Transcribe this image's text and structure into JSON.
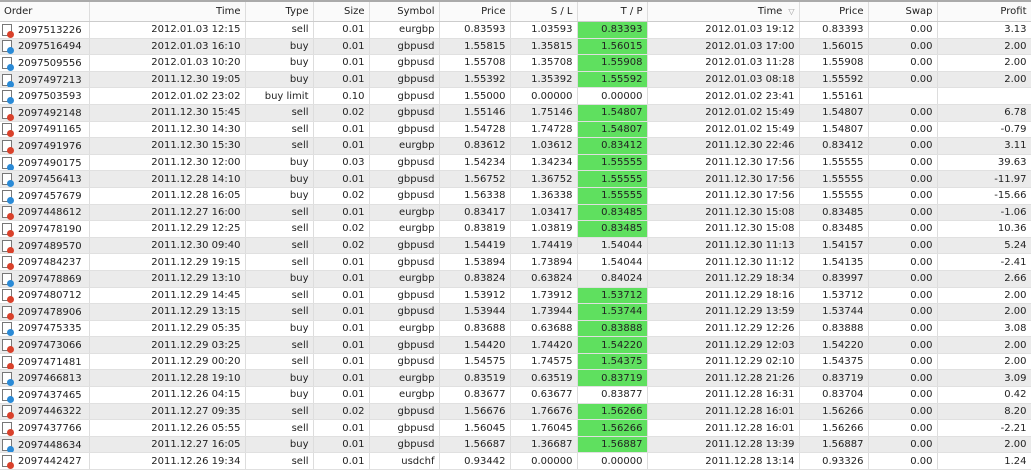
{
  "colors": {
    "tp_hit": "#5fe05f",
    "sell": "#d9412b",
    "buy": "#2a8ad6",
    "row_alt": "#ebebeb"
  },
  "columns": [
    "Order",
    "Time",
    "Type",
    "Size",
    "Symbol",
    "Price",
    "S / L",
    "T / P",
    "Time",
    "Price",
    "Swap",
    "Profit"
  ],
  "sort_icon": "sort-descending-icon",
  "rows": [
    [
      "2097513226",
      "2012.01.03 12:15",
      "sell",
      "0.01",
      "eurgbp",
      "0.83593",
      "1.03593",
      "0.83393",
      "2012.01.03 19:12",
      "0.83393",
      "0.00",
      "3.13",
      true
    ],
    [
      "2097516494",
      "2012.01.03 16:10",
      "buy",
      "0.01",
      "gbpusd",
      "1.55815",
      "1.35815",
      "1.56015",
      "2012.01.03 17:00",
      "1.56015",
      "0.00",
      "2.00",
      true
    ],
    [
      "2097509556",
      "2012.01.03 10:20",
      "buy",
      "0.01",
      "gbpusd",
      "1.55708",
      "1.35708",
      "1.55908",
      "2012.01.03 11:28",
      "1.55908",
      "0.00",
      "2.00",
      true
    ],
    [
      "2097497213",
      "2011.12.30 19:05",
      "buy",
      "0.01",
      "gbpusd",
      "1.55392",
      "1.35392",
      "1.55592",
      "2012.01.03 08:18",
      "1.55592",
      "0.00",
      "2.00",
      true
    ],
    [
      "2097503593",
      "2012.01.02 23:02",
      "buy limit",
      "0.10",
      "gbpusd",
      "1.55000",
      "0.00000",
      "0.00000",
      "2012.01.02 23:41",
      "1.55161",
      "",
      "",
      false
    ],
    [
      "2097492148",
      "2011.12.30 15:45",
      "sell",
      "0.02",
      "gbpusd",
      "1.55146",
      "1.75146",
      "1.54807",
      "2012.01.02 15:49",
      "1.54807",
      "0.00",
      "6.78",
      true
    ],
    [
      "2097491165",
      "2011.12.30 14:30",
      "sell",
      "0.01",
      "gbpusd",
      "1.54728",
      "1.74728",
      "1.54807",
      "2012.01.02 15:49",
      "1.54807",
      "0.00",
      "-0.79",
      true
    ],
    [
      "2097491976",
      "2011.12.30 15:30",
      "sell",
      "0.01",
      "eurgbp",
      "0.83612",
      "1.03612",
      "0.83412",
      "2011.12.30 22:46",
      "0.83412",
      "0.00",
      "3.11",
      true
    ],
    [
      "2097490175",
      "2011.12.30 12:00",
      "buy",
      "0.03",
      "gbpusd",
      "1.54234",
      "1.34234",
      "1.55555",
      "2011.12.30 17:56",
      "1.55555",
      "0.00",
      "39.63",
      true
    ],
    [
      "2097456413",
      "2011.12.28 14:10",
      "buy",
      "0.01",
      "gbpusd",
      "1.56752",
      "1.36752",
      "1.55555",
      "2011.12.30 17:56",
      "1.55555",
      "0.00",
      "-11.97",
      true
    ],
    [
      "2097457679",
      "2011.12.28 16:05",
      "buy",
      "0.02",
      "gbpusd",
      "1.56338",
      "1.36338",
      "1.55555",
      "2011.12.30 17:56",
      "1.55555",
      "0.00",
      "-15.66",
      true
    ],
    [
      "2097448612",
      "2011.12.27 16:00",
      "sell",
      "0.01",
      "eurgbp",
      "0.83417",
      "1.03417",
      "0.83485",
      "2011.12.30 15:08",
      "0.83485",
      "0.00",
      "-1.06",
      true
    ],
    [
      "2097478190",
      "2011.12.29 12:25",
      "sell",
      "0.02",
      "eurgbp",
      "0.83819",
      "1.03819",
      "0.83485",
      "2011.12.30 15:08",
      "0.83485",
      "0.00",
      "10.36",
      true
    ],
    [
      "2097489570",
      "2011.12.30 09:40",
      "sell",
      "0.02",
      "gbpusd",
      "1.54419",
      "1.74419",
      "1.54044",
      "2011.12.30 11:13",
      "1.54157",
      "0.00",
      "5.24",
      false
    ],
    [
      "2097484237",
      "2011.12.29 19:15",
      "sell",
      "0.01",
      "gbpusd",
      "1.53894",
      "1.73894",
      "1.54044",
      "2011.12.30 11:12",
      "1.54135",
      "0.00",
      "-2.41",
      false
    ],
    [
      "2097478869",
      "2011.12.29 13:10",
      "buy",
      "0.01",
      "eurgbp",
      "0.83824",
      "0.63824",
      "0.84024",
      "2011.12.29 18:34",
      "0.83997",
      "0.00",
      "2.66",
      false
    ],
    [
      "2097480712",
      "2011.12.29 14:45",
      "sell",
      "0.01",
      "gbpusd",
      "1.53912",
      "1.73912",
      "1.53712",
      "2011.12.29 18:16",
      "1.53712",
      "0.00",
      "2.00",
      true
    ],
    [
      "2097478906",
      "2011.12.29 13:15",
      "sell",
      "0.01",
      "gbpusd",
      "1.53944",
      "1.73944",
      "1.53744",
      "2011.12.29 13:59",
      "1.53744",
      "0.00",
      "2.00",
      true
    ],
    [
      "2097475335",
      "2011.12.29 05:35",
      "buy",
      "0.01",
      "eurgbp",
      "0.83688",
      "0.63688",
      "0.83888",
      "2011.12.29 12:26",
      "0.83888",
      "0.00",
      "3.08",
      true
    ],
    [
      "2097473066",
      "2011.12.29 03:25",
      "sell",
      "0.01",
      "gbpusd",
      "1.54420",
      "1.74420",
      "1.54220",
      "2011.12.29 12:03",
      "1.54220",
      "0.00",
      "2.00",
      true
    ],
    [
      "2097471481",
      "2011.12.29 00:20",
      "sell",
      "0.01",
      "gbpusd",
      "1.54575",
      "1.74575",
      "1.54375",
      "2011.12.29 02:10",
      "1.54375",
      "0.00",
      "2.00",
      true
    ],
    [
      "2097466813",
      "2011.12.28 19:10",
      "buy",
      "0.01",
      "eurgbp",
      "0.83519",
      "0.63519",
      "0.83719",
      "2011.12.28 21:26",
      "0.83719",
      "0.00",
      "3.09",
      true
    ],
    [
      "2097437465",
      "2011.12.26 04:15",
      "buy",
      "0.01",
      "eurgbp",
      "0.83677",
      "0.63677",
      "0.83877",
      "2011.12.28 16:31",
      "0.83704",
      "0.00",
      "0.42",
      false
    ],
    [
      "2097446322",
      "2011.12.27 09:35",
      "sell",
      "0.02",
      "gbpusd",
      "1.56676",
      "1.76676",
      "1.56266",
      "2011.12.28 16:01",
      "1.56266",
      "0.00",
      "8.20",
      true
    ],
    [
      "2097437766",
      "2011.12.26 05:55",
      "sell",
      "0.01",
      "gbpusd",
      "1.56045",
      "1.76045",
      "1.56266",
      "2011.12.28 16:01",
      "1.56266",
      "0.00",
      "-2.21",
      true
    ],
    [
      "2097448634",
      "2011.12.27 16:05",
      "buy",
      "0.01",
      "gbpusd",
      "1.56687",
      "1.36687",
      "1.56887",
      "2011.12.28 13:39",
      "1.56887",
      "0.00",
      "2.00",
      true
    ],
    [
      "2097442427",
      "2011.12.26 19:34",
      "sell",
      "0.01",
      "usdchf",
      "0.93442",
      "0.00000",
      "0.00000",
      "2011.12.28 13:14",
      "0.93326",
      "0.00",
      "1.24",
      false
    ]
  ]
}
